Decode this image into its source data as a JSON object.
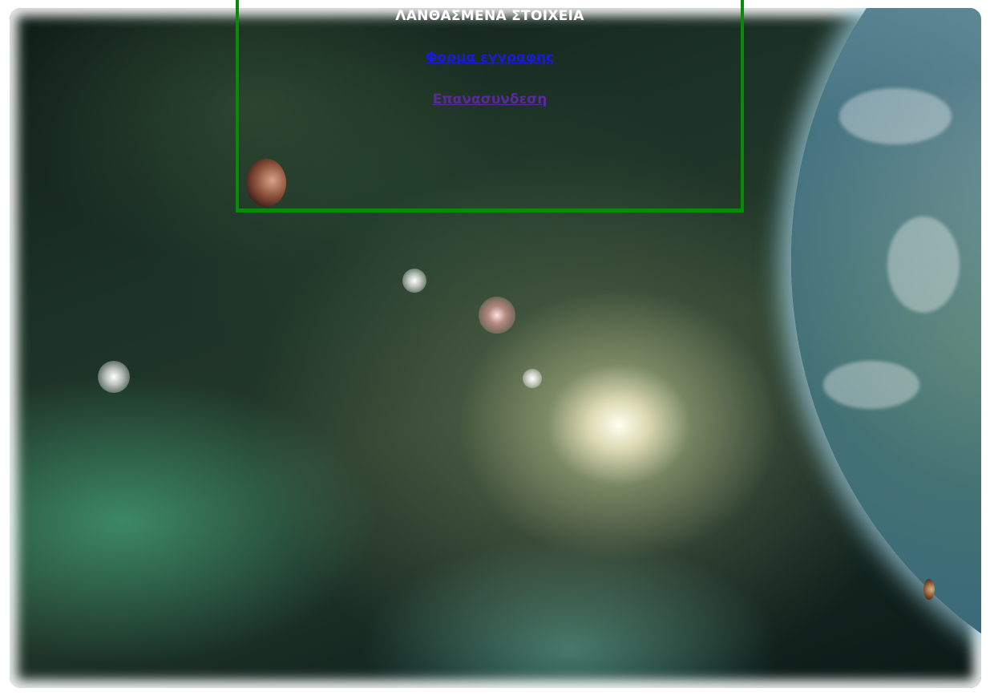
{
  "error_panel": {
    "title": "ΛΑΝΘΑΣΜΕΝΑ ΣΤΟΙΧΕΙΑ",
    "register_link": "Φορμα εγγραφης",
    "reconnect_link": "Επανασυνδεση"
  },
  "colors": {
    "panel_border": "#0a8a0a",
    "title_text": "#ffffff",
    "register_link": "#1a1adc",
    "reconnect_link_visited": "#5a2a9a"
  }
}
